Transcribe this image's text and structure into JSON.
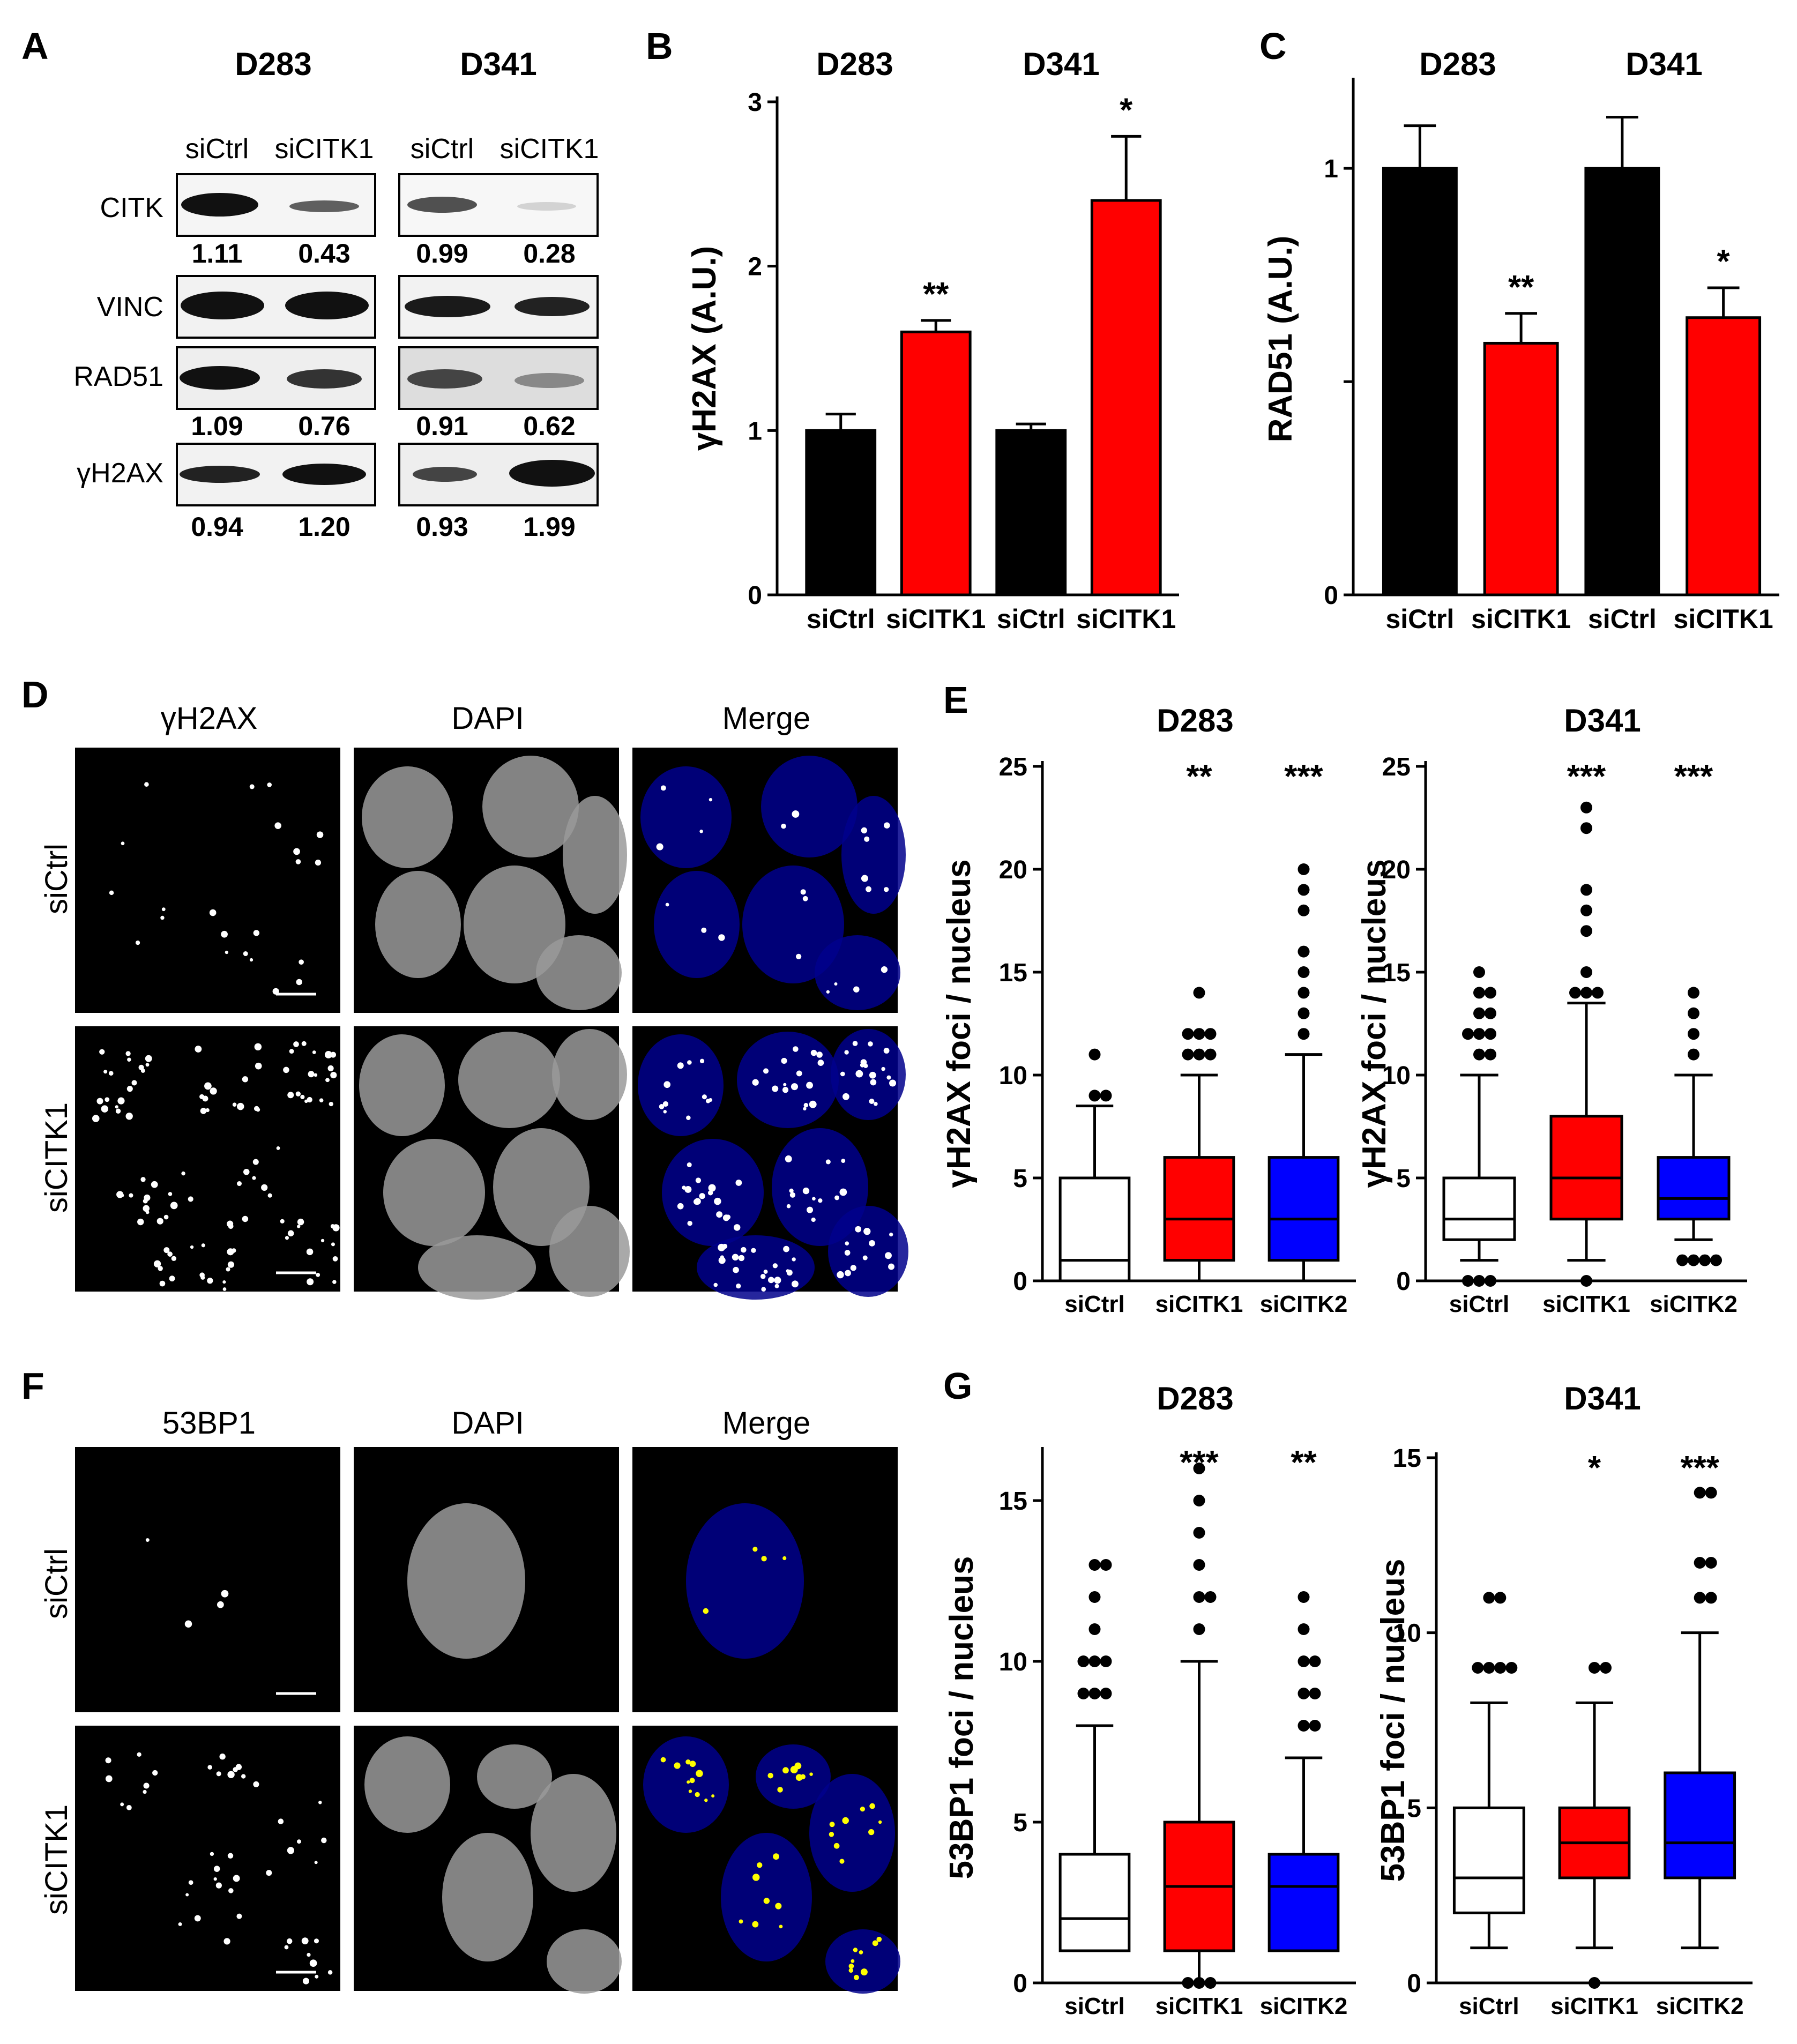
{
  "panels": {
    "A": {
      "letter": "A",
      "groups": [
        {
          "name": "D283",
          "lane_labels": [
            "siCtrl",
            "siCITK1"
          ]
        },
        {
          "name": "D341",
          "lane_labels": [
            "siCtrl",
            "siCITK1"
          ]
        }
      ],
      "rows": [
        {
          "protein": "CITK",
          "d283_values": [
            "1.11",
            "0.43"
          ],
          "d341_values": [
            "0.99",
            "0.28"
          ]
        },
        {
          "protein": "VINC"
        },
        {
          "protein": "RAD51",
          "d283_values": [
            "1.09",
            "0.76"
          ],
          "d341_values": [
            "0.91",
            "0.62"
          ]
        },
        {
          "protein": "γH2AX",
          "d283_values": [
            "0.94",
            "1.20"
          ],
          "d341_values": [
            "0.93",
            "1.99"
          ]
        }
      ]
    },
    "B": {
      "letter": "B",
      "group_labels": [
        "D283",
        "D341"
      ]
    },
    "C": {
      "letter": "C",
      "group_labels": [
        "D283",
        "D341"
      ]
    },
    "D": {
      "letter": "D",
      "column_labels": [
        "γH2AX",
        "DAPI",
        "Merge"
      ],
      "row_labels": [
        "siCtrl",
        "siCITK1"
      ]
    },
    "E": {
      "letter": "E"
    },
    "F": {
      "letter": "F",
      "column_labels": [
        "53BP1",
        "DAPI",
        "Merge"
      ],
      "row_labels": [
        "siCtrl",
        "siCITK1"
      ]
    },
    "G": {
      "letter": "G"
    }
  },
  "colors": {
    "ctrl": "#000000",
    "citk1": "#ff0000",
    "citk2": "#0000ff",
    "merge_bg": "#00008c"
  },
  "chart_data": [
    {
      "id": "B",
      "type": "bar",
      "categories": [
        "siCtrl",
        "siCITK1",
        "siCtrl",
        "siCITK1"
      ],
      "values": [
        1.0,
        1.6,
        1.0,
        2.4
      ],
      "errors": [
        0.1,
        0.07,
        0.04,
        0.39
      ],
      "bar_colors": [
        "#000000",
        "#ff0000",
        "#000000",
        "#ff0000"
      ],
      "significance": [
        "",
        "**",
        "",
        "*"
      ],
      "ylabel": "γH2AX (A.U.)",
      "ylim": [
        0,
        3
      ],
      "yticks": [
        "0",
        "1",
        "2",
        "3"
      ]
    },
    {
      "id": "C",
      "type": "bar",
      "categories": [
        "siCtrl",
        "siCITK1",
        "siCtrl",
        "siCITK1"
      ],
      "values": [
        1.0,
        0.59,
        1.0,
        0.65
      ],
      "errors": [
        0.1,
        0.07,
        0.12,
        0.07
      ],
      "bar_colors": [
        "#000000",
        "#ff0000",
        "#000000",
        "#ff0000"
      ],
      "significance": [
        "",
        "**",
        "",
        "*"
      ],
      "ylabel": "RAD51 (A.U.)",
      "ylim": [
        0,
        1.2
      ],
      "yticks": [
        "0",
        "",
        "1"
      ],
      "ytick_values": [
        0,
        0.5,
        1
      ]
    },
    {
      "id": "E1",
      "type": "box",
      "title": "D283",
      "ylabel": "γH2AX foci / nucleus",
      "ylim": [
        0,
        25
      ],
      "yticks": [
        "0",
        "5",
        "10",
        "15",
        "20",
        "25"
      ],
      "categories": [
        "siCtrl",
        "siCITK1",
        "siCITK2"
      ],
      "significance": [
        "",
        "**",
        "***"
      ],
      "boxes": [
        {
          "whisker_low": 0,
          "q1": 0,
          "median": 1,
          "q3": 5,
          "whisker_high": 8.5,
          "outliers": [
            9,
            9,
            11
          ],
          "color": "#ffffff"
        },
        {
          "whisker_low": 0,
          "q1": 1,
          "median": 3,
          "q3": 6,
          "whisker_high": 10,
          "outliers": [
            11,
            11,
            11,
            12,
            12,
            12,
            14
          ],
          "color": "#ff0000"
        },
        {
          "whisker_low": 0,
          "q1": 1,
          "median": 3,
          "q3": 6,
          "whisker_high": 11,
          "outliers": [
            12,
            13,
            14,
            15,
            16,
            18,
            19,
            20
          ],
          "color": "#0000ff"
        }
      ]
    },
    {
      "id": "E2",
      "type": "box",
      "title": "D341",
      "ylabel": "γH2AX foci / nucleus",
      "ylim": [
        0,
        25
      ],
      "yticks": [
        "0",
        "5",
        "10",
        "15",
        "20",
        "25"
      ],
      "categories": [
        "siCtrl",
        "siCITK1",
        "siCITK2"
      ],
      "significance": [
        "",
        "***",
        "***"
      ],
      "boxes": [
        {
          "whisker_low": 1,
          "q1": 2,
          "median": 3,
          "q3": 5,
          "whisker_high": 10,
          "outliers": [
            0,
            0,
            0,
            11,
            11,
            12,
            12,
            12,
            13,
            13,
            14,
            14,
            15
          ],
          "color": "#ffffff"
        },
        {
          "whisker_low": 1,
          "q1": 3,
          "median": 5,
          "q3": 8,
          "whisker_high": 13.5,
          "outliers": [
            0,
            14,
            14,
            14,
            15,
            17,
            18,
            19,
            22,
            23
          ],
          "color": "#ff0000"
        },
        {
          "whisker_low": 2,
          "q1": 3,
          "median": 4,
          "q3": 6,
          "whisker_high": 10,
          "outliers": [
            1,
            1,
            1,
            1,
            11,
            12,
            13,
            14
          ],
          "color": "#0000ff"
        }
      ]
    },
    {
      "id": "G1",
      "type": "box",
      "title": "D283",
      "ylabel": "53BP1 foci / nucleus",
      "ylim": [
        0,
        16.5
      ],
      "yticks": [
        "0",
        "5",
        "10",
        "15"
      ],
      "categories": [
        "siCtrl",
        "siCITK1",
        "siCITK2"
      ],
      "significance": [
        "",
        "***",
        "**"
      ],
      "boxes": [
        {
          "whisker_low": 1,
          "q1": 1,
          "median": 2,
          "q3": 4,
          "whisker_high": 8,
          "outliers": [
            9,
            9,
            9,
            10,
            10,
            10,
            11,
            12,
            13,
            13
          ],
          "color": "#ffffff"
        },
        {
          "whisker_low": 0,
          "q1": 1,
          "median": 3,
          "q3": 5,
          "whisker_high": 10,
          "outliers": [
            0,
            0,
            0,
            11,
            12,
            12,
            13,
            14,
            15,
            16
          ],
          "color": "#ff0000"
        },
        {
          "whisker_low": 1,
          "q1": 1,
          "median": 3,
          "q3": 4,
          "whisker_high": 7,
          "outliers": [
            8,
            8,
            9,
            9,
            10,
            10,
            11,
            12
          ],
          "color": "#0000ff"
        }
      ]
    },
    {
      "id": "G2",
      "type": "box",
      "title": "D341",
      "ylabel": "53BP1 foci / nucleus",
      "ylim": [
        0,
        15
      ],
      "yticks": [
        "0",
        "5",
        "10",
        "15"
      ],
      "categories": [
        "siCtrl",
        "siCITK1",
        "siCITK2"
      ],
      "significance": [
        "",
        "*",
        "***"
      ],
      "boxes": [
        {
          "whisker_low": 1,
          "q1": 2,
          "median": 3,
          "q3": 5,
          "whisker_high": 8,
          "outliers": [
            9,
            9,
            9,
            9,
            11,
            11
          ],
          "color": "#ffffff"
        },
        {
          "whisker_low": 1,
          "q1": 3,
          "median": 4,
          "q3": 5,
          "whisker_high": 8,
          "outliers": [
            0,
            9,
            9
          ],
          "color": "#ff0000"
        },
        {
          "whisker_low": 1,
          "q1": 3,
          "median": 4,
          "q3": 6,
          "whisker_high": 10,
          "outliers": [
            11,
            11,
            12,
            12,
            14,
            14
          ],
          "color": "#0000ff"
        }
      ]
    }
  ]
}
